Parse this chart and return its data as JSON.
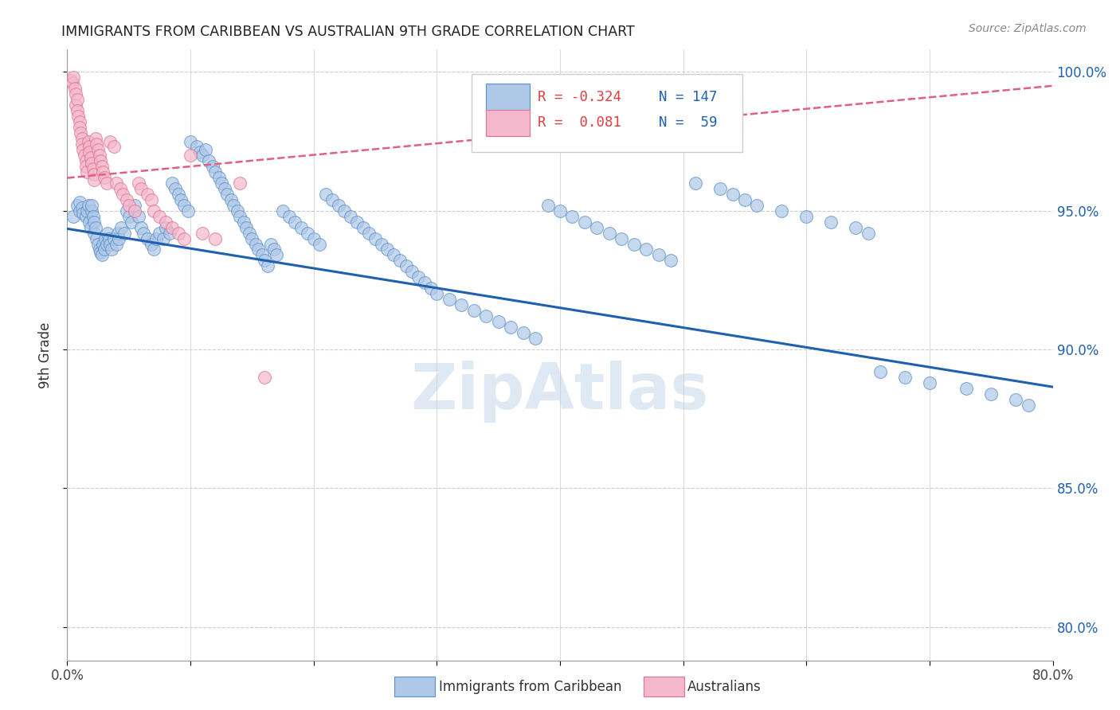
{
  "title": "IMMIGRANTS FROM CARIBBEAN VS AUSTRALIAN 9TH GRADE CORRELATION CHART",
  "source": "Source: ZipAtlas.com",
  "ylabel": "9th Grade",
  "xmin": 0.0,
  "xmax": 0.8,
  "ymin": 0.788,
  "ymax": 1.008,
  "xticks": [
    0.0,
    0.1,
    0.2,
    0.3,
    0.4,
    0.5,
    0.6,
    0.7,
    0.8
  ],
  "xticklabels": [
    "0.0%",
    "",
    "",
    "",
    "",
    "",
    "",
    "",
    "80.0%"
  ],
  "yticks": [
    0.8,
    0.85,
    0.9,
    0.95,
    1.0
  ],
  "yticklabels": [
    "80.0%",
    "85.0%",
    "90.0%",
    "95.0%",
    "100.0%"
  ],
  "legend_R1": "-0.324",
  "legend_N1": "147",
  "legend_R2": "0.081",
  "legend_N2": "59",
  "legend_label1": "Immigrants from Caribbean",
  "legend_label2": "Australians",
  "watermark": "ZipAtlas",
  "blue_color": "#aec8e8",
  "pink_color": "#f4b8cc",
  "blue_edge_color": "#5b8fc7",
  "pink_edge_color": "#e07090",
  "blue_line_color": "#2060b0",
  "pink_line_color": "#e06080",
  "blue_scatter_x": [
    0.005,
    0.008,
    0.01,
    0.01,
    0.012,
    0.013,
    0.015,
    0.016,
    0.017,
    0.018,
    0.019,
    0.02,
    0.02,
    0.021,
    0.022,
    0.022,
    0.023,
    0.024,
    0.025,
    0.026,
    0.027,
    0.028,
    0.029,
    0.03,
    0.031,
    0.032,
    0.033,
    0.034,
    0.035,
    0.036,
    0.038,
    0.04,
    0.041,
    0.042,
    0.044,
    0.046,
    0.048,
    0.05,
    0.052,
    0.055,
    0.058,
    0.06,
    0.062,
    0.065,
    0.068,
    0.07,
    0.072,
    0.075,
    0.078,
    0.08,
    0.083,
    0.085,
    0.088,
    0.09,
    0.092,
    0.095,
    0.098,
    0.1,
    0.105,
    0.108,
    0.11,
    0.112,
    0.115,
    0.118,
    0.12,
    0.123,
    0.125,
    0.128,
    0.13,
    0.133,
    0.135,
    0.138,
    0.14,
    0.143,
    0.145,
    0.148,
    0.15,
    0.153,
    0.155,
    0.158,
    0.16,
    0.163,
    0.165,
    0.168,
    0.17,
    0.175,
    0.18,
    0.185,
    0.19,
    0.195,
    0.2,
    0.205,
    0.21,
    0.215,
    0.22,
    0.225,
    0.23,
    0.235,
    0.24,
    0.245,
    0.25,
    0.255,
    0.26,
    0.265,
    0.27,
    0.275,
    0.28,
    0.285,
    0.29,
    0.295,
    0.3,
    0.31,
    0.32,
    0.33,
    0.34,
    0.35,
    0.36,
    0.37,
    0.38,
    0.39,
    0.4,
    0.41,
    0.42,
    0.43,
    0.44,
    0.45,
    0.46,
    0.47,
    0.48,
    0.49,
    0.51,
    0.53,
    0.54,
    0.55,
    0.56,
    0.58,
    0.6,
    0.62,
    0.64,
    0.65,
    0.66,
    0.68,
    0.7,
    0.73,
    0.75,
    0.77,
    0.78
  ],
  "blue_scatter_y": [
    0.948,
    0.952,
    0.95,
    0.953,
    0.951,
    0.949,
    0.948,
    0.95,
    0.952,
    0.946,
    0.944,
    0.95,
    0.952,
    0.948,
    0.942,
    0.946,
    0.944,
    0.94,
    0.938,
    0.936,
    0.935,
    0.934,
    0.938,
    0.936,
    0.94,
    0.938,
    0.942,
    0.94,
    0.938,
    0.936,
    0.94,
    0.938,
    0.942,
    0.94,
    0.944,
    0.942,
    0.95,
    0.948,
    0.946,
    0.952,
    0.948,
    0.944,
    0.942,
    0.94,
    0.938,
    0.936,
    0.94,
    0.942,
    0.94,
    0.944,
    0.942,
    0.96,
    0.958,
    0.956,
    0.954,
    0.952,
    0.95,
    0.975,
    0.973,
    0.971,
    0.97,
    0.972,
    0.968,
    0.966,
    0.964,
    0.962,
    0.96,
    0.958,
    0.956,
    0.954,
    0.952,
    0.95,
    0.948,
    0.946,
    0.944,
    0.942,
    0.94,
    0.938,
    0.936,
    0.934,
    0.932,
    0.93,
    0.938,
    0.936,
    0.934,
    0.95,
    0.948,
    0.946,
    0.944,
    0.942,
    0.94,
    0.938,
    0.956,
    0.954,
    0.952,
    0.95,
    0.948,
    0.946,
    0.944,
    0.942,
    0.94,
    0.938,
    0.936,
    0.934,
    0.932,
    0.93,
    0.928,
    0.926,
    0.924,
    0.922,
    0.92,
    0.918,
    0.916,
    0.914,
    0.912,
    0.91,
    0.908,
    0.906,
    0.904,
    0.952,
    0.95,
    0.948,
    0.946,
    0.944,
    0.942,
    0.94,
    0.938,
    0.936,
    0.934,
    0.932,
    0.96,
    0.958,
    0.956,
    0.954,
    0.952,
    0.95,
    0.948,
    0.946,
    0.944,
    0.942,
    0.892,
    0.89,
    0.888,
    0.886,
    0.884,
    0.882,
    0.88
  ],
  "pink_scatter_x": [
    0.003,
    0.004,
    0.005,
    0.006,
    0.007,
    0.007,
    0.008,
    0.008,
    0.009,
    0.01,
    0.01,
    0.011,
    0.012,
    0.012,
    0.013,
    0.014,
    0.015,
    0.015,
    0.016,
    0.017,
    0.018,
    0.018,
    0.019,
    0.02,
    0.021,
    0.022,
    0.022,
    0.023,
    0.024,
    0.025,
    0.026,
    0.027,
    0.028,
    0.029,
    0.03,
    0.032,
    0.035,
    0.038,
    0.04,
    0.043,
    0.045,
    0.048,
    0.05,
    0.055,
    0.058,
    0.06,
    0.065,
    0.068,
    0.07,
    0.075,
    0.08,
    0.085,
    0.09,
    0.095,
    0.1,
    0.11,
    0.12,
    0.14,
    0.16
  ],
  "pink_scatter_y": [
    0.997,
    0.996,
    0.998,
    0.994,
    0.992,
    0.988,
    0.99,
    0.986,
    0.984,
    0.982,
    0.98,
    0.978,
    0.976,
    0.974,
    0.972,
    0.97,
    0.968,
    0.966,
    0.964,
    0.975,
    0.973,
    0.971,
    0.969,
    0.967,
    0.965,
    0.963,
    0.961,
    0.976,
    0.974,
    0.972,
    0.97,
    0.968,
    0.966,
    0.964,
    0.962,
    0.96,
    0.975,
    0.973,
    0.96,
    0.958,
    0.956,
    0.954,
    0.952,
    0.95,
    0.96,
    0.958,
    0.956,
    0.954,
    0.95,
    0.948,
    0.946,
    0.944,
    0.942,
    0.94,
    0.97,
    0.942,
    0.94,
    0.96,
    0.89
  ],
  "blue_trendline_x": [
    0.0,
    0.8
  ],
  "blue_trendline_y": [
    0.9435,
    0.8865
  ],
  "pink_trendline_x": [
    0.0,
    0.8
  ],
  "pink_trendline_y": [
    0.9618,
    0.995
  ]
}
